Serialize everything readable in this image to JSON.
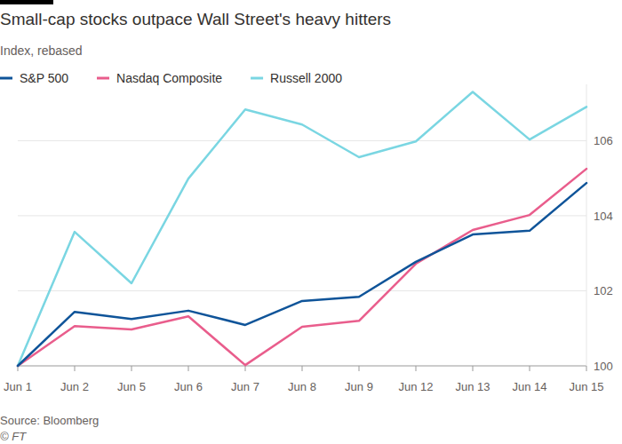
{
  "chart_data": {
    "type": "line",
    "title": "Small-cap stocks outpace Wall Street's heavy hitters",
    "subtitle": "Index, rebased",
    "source": "Source: Bloomberg",
    "copyright": "© FT",
    "categories": [
      "Jun 1",
      "Jun 2",
      "Jun 5",
      "Jun 6",
      "Jun 7",
      "Jun 8",
      "Jun 9",
      "Jun 12",
      "Jun 13",
      "Jun 14",
      "Jun 15"
    ],
    "series": [
      {
        "name": "S&P 500",
        "color": "#0f5499",
        "values": [
          100,
          101.44,
          101.25,
          101.47,
          101.09,
          101.73,
          101.84,
          102.77,
          103.5,
          103.6,
          104.87
        ]
      },
      {
        "name": "Nasdaq Composite",
        "color": "#e95d8c",
        "values": [
          100,
          101.06,
          100.97,
          101.32,
          100.02,
          101.04,
          101.2,
          102.72,
          103.62,
          104.02,
          105.25
        ]
      },
      {
        "name": "Russell 2000",
        "color": "#7ad6e2",
        "values": [
          100,
          103.57,
          102.2,
          104.99,
          106.83,
          106.43,
          105.56,
          105.98,
          107.3,
          106.03,
          106.9
        ]
      }
    ],
    "ylim": [
      100,
      107.5
    ],
    "yticks": [
      100,
      102,
      104,
      106
    ],
    "grid": true,
    "legend": "top-left"
  }
}
